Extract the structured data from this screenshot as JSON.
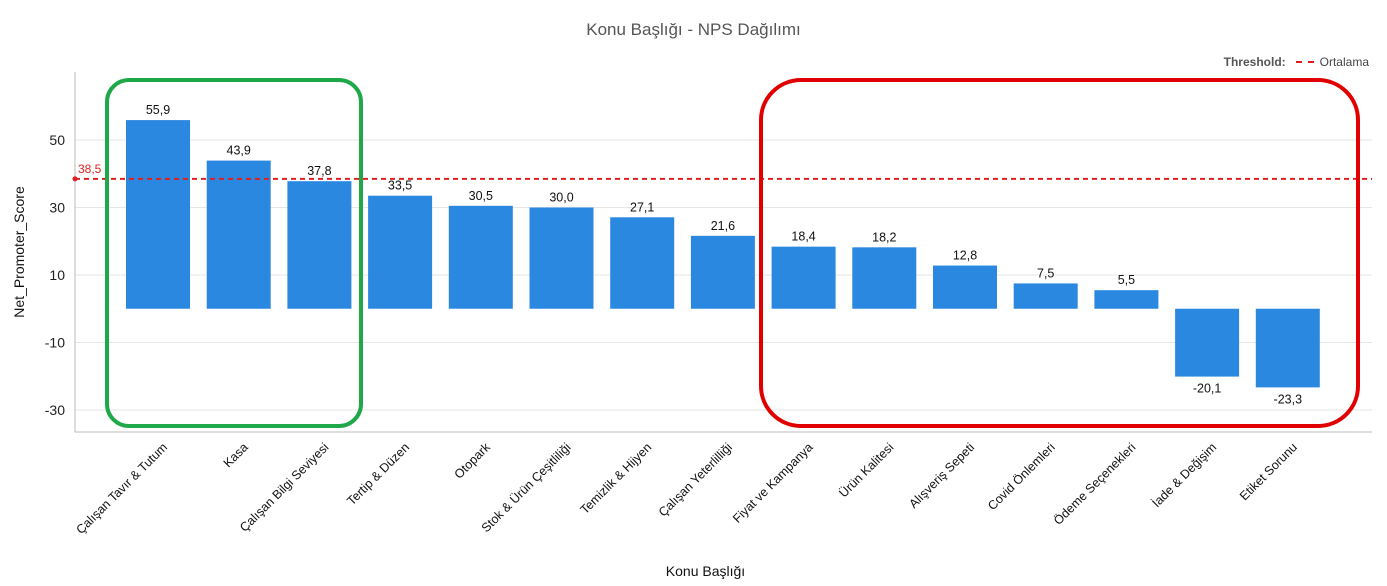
{
  "chart_data": {
    "type": "bar",
    "title": "Konu Başlığı - NPS Dağılımı",
    "xlabel": "Konu Başlığı",
    "ylabel": "Net_Promoter_Score",
    "categories": [
      "Çalışan Tavır & Tutum",
      "Kasa",
      "Çalışan Bilgi Seviyesi",
      "Tertip & Düzen",
      "Otopark",
      "Stok & Ürün Çeşitliliği",
      "Temizlik & Hijyen",
      "Çalışan Yeterlilliği",
      "Fiyat ve Kampanya",
      "Ürün Kalitesi",
      "Alışveriş Sepeti",
      "Covid Önlemleri",
      "Ödeme Seçenekleri",
      "İade & Değişim",
      "Etiket Sorunu"
    ],
    "values": [
      55.9,
      43.9,
      37.8,
      33.5,
      30.5,
      30.0,
      27.1,
      21.6,
      18.4,
      18.2,
      12.8,
      7.5,
      5.5,
      -20.1,
      -23.3
    ],
    "value_labels": [
      "55,9",
      "43,9",
      "37,8",
      "33,5",
      "30,5",
      "30,0",
      "27,1",
      "21,6",
      "18,4",
      "18,2",
      "12,8",
      "7,5",
      "5,5",
      "-20,1",
      "-23,3"
    ],
    "yticks": [
      50,
      30,
      10,
      -10,
      -30
    ],
    "ylim": [
      -36,
      70
    ],
    "threshold": {
      "value": 38.5,
      "label": "38,5",
      "legend_title": "Threshold:",
      "legend_name": "Ortalama"
    },
    "bar_color": "#2b88e0",
    "threshold_color": "#e02020",
    "highlight_colors": {
      "green": "#1fa84a",
      "red": "#e00000"
    },
    "grid": true
  }
}
